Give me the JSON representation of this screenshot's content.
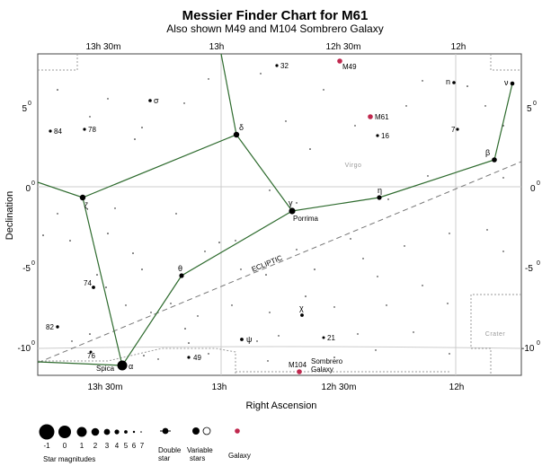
{
  "title": "Messier Finder Chart for M61",
  "subtitle": "Also shown M49 and M104 Sombrero Galaxy",
  "axes": {
    "x_title": "Right Ascension",
    "y_title": "Declination",
    "x_ticks": [
      "13h 30m",
      "13h",
      "12h 30m",
      "12h"
    ],
    "y_ticks": [
      "5",
      "0",
      "-5",
      "-10"
    ],
    "degree_symbol": "0"
  },
  "colors": {
    "background": "#ffffff",
    "grid": "#cccccc",
    "constellation_line": "#2e6b2e",
    "galaxy": "#c0284e",
    "ecliptic": "#777777",
    "boundary": "#999999",
    "region_label": "#999999"
  },
  "regions": [
    "Virgo",
    "Crater"
  ],
  "ecliptic_label": "ECLIPTIC",
  "named_stars": [
    {
      "id": "spica",
      "label": "Spica",
      "greek": "α",
      "mag": 1
    },
    {
      "id": "porrima",
      "label": "Porrima",
      "greek": "γ",
      "mag": 3
    },
    {
      "id": "delta",
      "label": "",
      "greek": "δ",
      "mag": 3
    },
    {
      "id": "zeta",
      "label": "",
      "greek": "ζ",
      "mag": 3
    },
    {
      "id": "theta",
      "label": "",
      "greek": "θ",
      "mag": 4
    },
    {
      "id": "eta",
      "label": "",
      "greek": "η",
      "mag": 4
    },
    {
      "id": "beta",
      "label": "",
      "greek": "β",
      "mag": 4
    },
    {
      "id": "nu",
      "label": "",
      "greek": "ν",
      "mag": 4
    },
    {
      "id": "n",
      "label": "",
      "greek": "n",
      "mag": 5
    },
    {
      "id": "sigma",
      "label": "",
      "greek": "σ",
      "mag": 5
    },
    {
      "id": "psi",
      "label": "",
      "greek": "ψ",
      "mag": 5
    },
    {
      "id": "chi",
      "label": "",
      "greek": "χ",
      "mag": 5
    }
  ],
  "numbered_stars": [
    "32",
    "84",
    "78",
    "16",
    "7",
    "74",
    "82",
    "76",
    "49",
    "21"
  ],
  "galaxies": [
    {
      "id": "M61",
      "label": "M61"
    },
    {
      "id": "M49",
      "label": "M49"
    },
    {
      "id": "M104",
      "label": "M104",
      "name_line1": "Sombrero",
      "name_line2": "Galaxy"
    }
  ],
  "legend": {
    "magnitudes_title": "Star magnitudes",
    "magnitudes": [
      "-1",
      "0",
      "1",
      "2",
      "3",
      "4",
      "5",
      "6",
      "7"
    ],
    "double_label_1": "Double",
    "double_label_2": "star",
    "variable_label_1": "Variable",
    "variable_label_2": "stars",
    "galaxy_label": "Galaxy"
  }
}
